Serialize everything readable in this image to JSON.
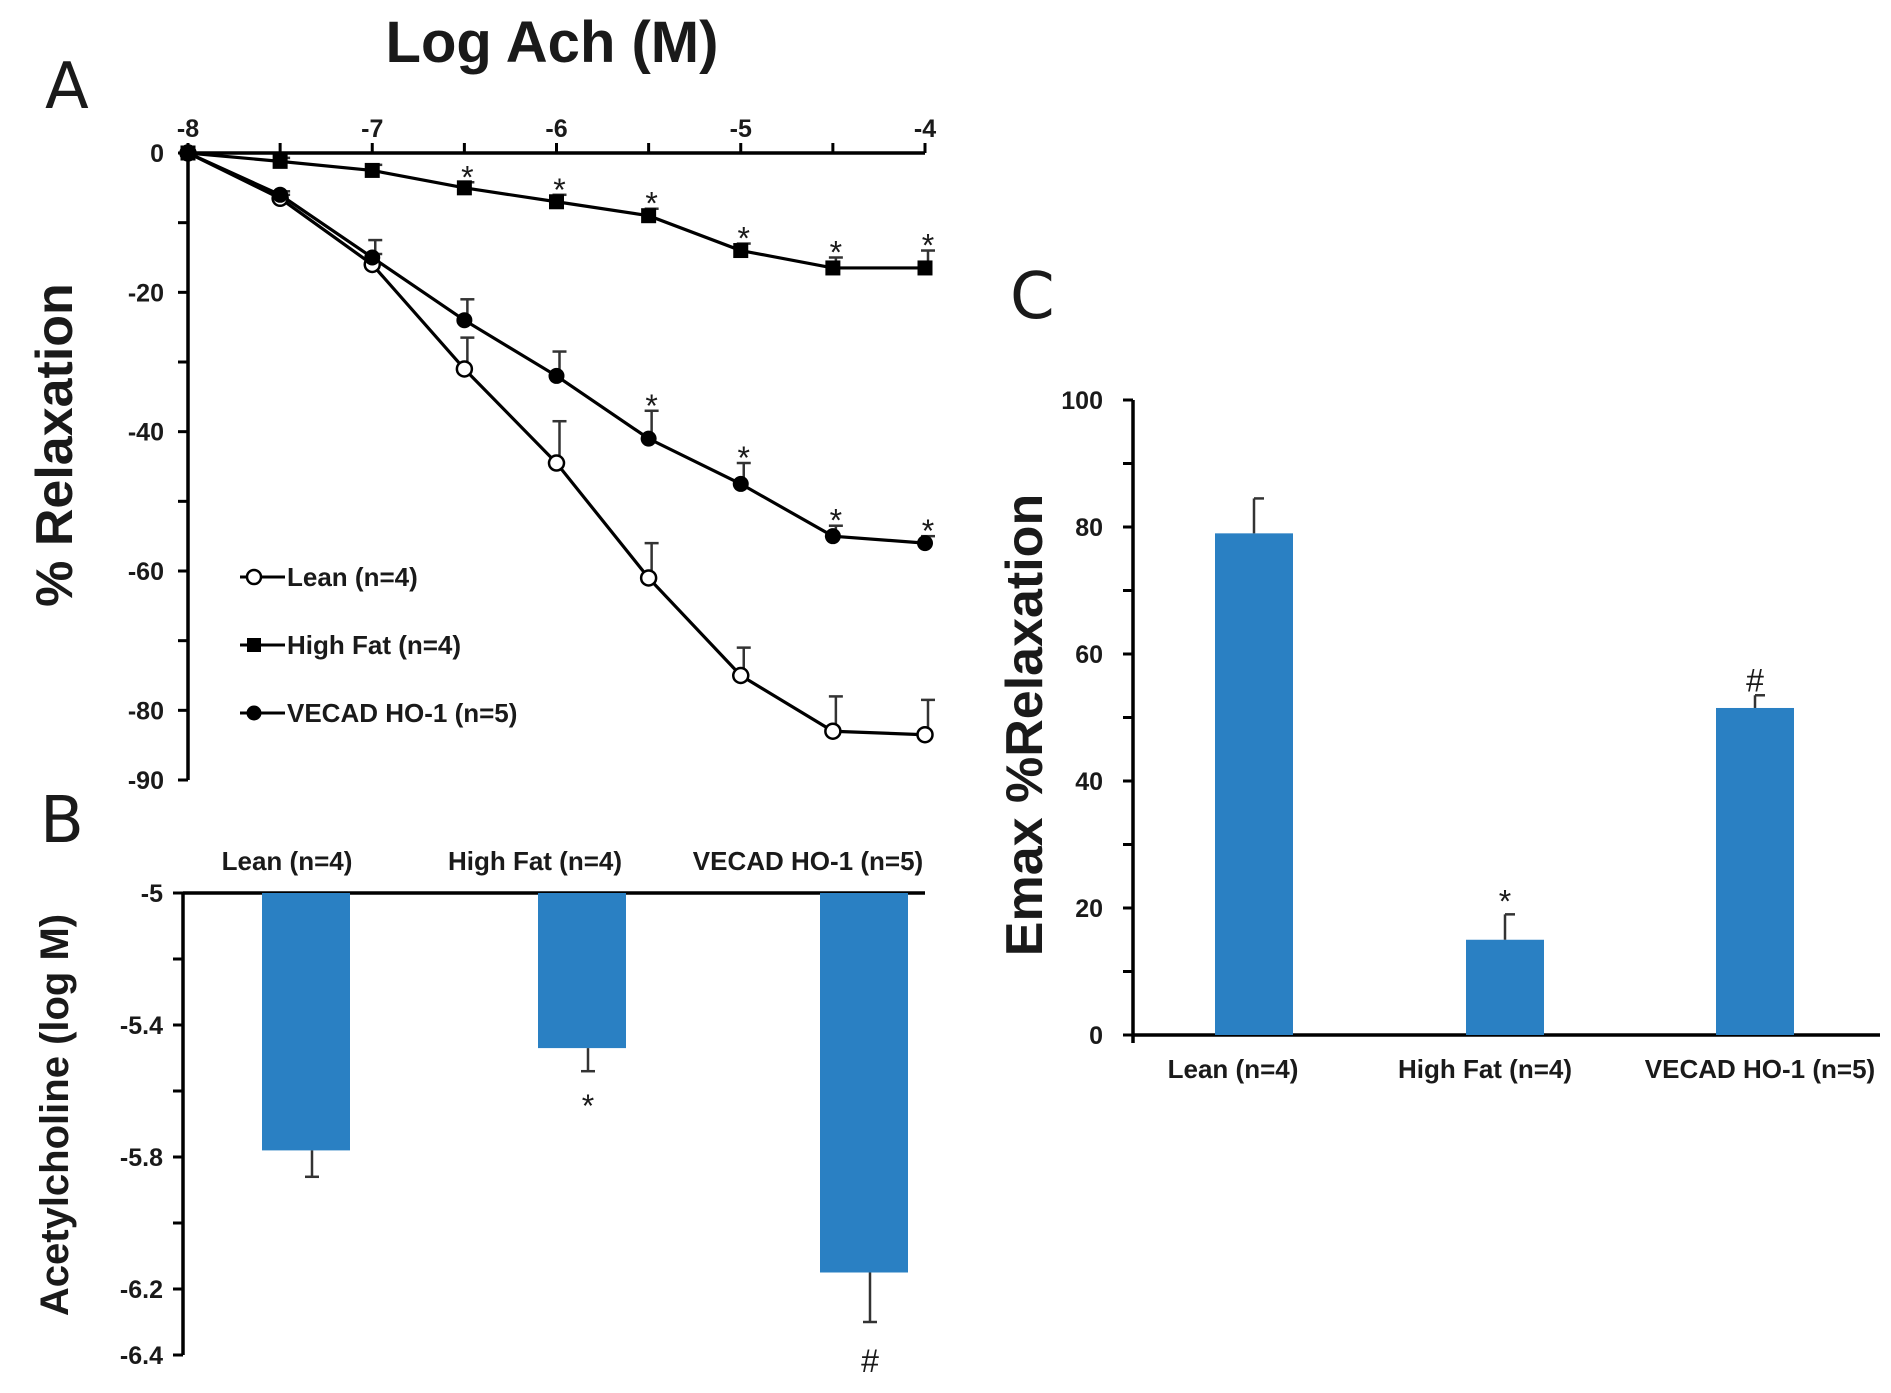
{
  "panel_labels": {
    "a": "A",
    "b": "B",
    "c": "C"
  },
  "colors": {
    "bar": "#2a80c3",
    "axis": "#000000"
  },
  "chart_data": [
    {
      "panel": "A",
      "type": "line",
      "title": "Log Ach (M)",
      "xlabel": "",
      "ylabel": "% Relaxation",
      "x_axis_position": "top",
      "xlim": [
        -8,
        -4
      ],
      "ylim": [
        -90,
        0
      ],
      "x_ticks": [
        "-8",
        "-7",
        "-6",
        "-5",
        "-4"
      ],
      "y_ticks": [
        {
          "value": 0,
          "label": "0"
        },
        {
          "value": -20,
          "label": "-20"
        },
        {
          "value": -40,
          "label": "-40"
        },
        {
          "value": -60,
          "label": "-60"
        },
        {
          "value": -80,
          "label": "-80"
        },
        {
          "value": -90,
          "label": "-90"
        }
      ],
      "x": [
        -8,
        -7.5,
        -7,
        -6.5,
        -6,
        -5.5,
        -5,
        -4.5,
        -4
      ],
      "legend_position": "bottom-left",
      "series": [
        {
          "name": "Lean (n=4)",
          "marker": "open-circle",
          "values": [
            0,
            -6.5,
            -16,
            -31,
            -44.5,
            -61,
            -75,
            -83,
            -83.5
          ],
          "errors": [
            0,
            0.5,
            1.5,
            4.5,
            6,
            5,
            4,
            5,
            5
          ],
          "significance": [
            "",
            "",
            "",
            "",
            "",
            "",
            "",
            "",
            ""
          ]
        },
        {
          "name": "High Fat (n=4)",
          "marker": "filled-square",
          "values": [
            0,
            -1.2,
            -2.5,
            -5,
            -7,
            -9,
            -14,
            -16.5,
            -16.5
          ],
          "errors": [
            0,
            0.5,
            0.8,
            0.8,
            1,
            1,
            1,
            1.5,
            2.5
          ],
          "significance": [
            "",
            "",
            "",
            "*",
            "*",
            "*",
            "*",
            "*",
            "*"
          ]
        },
        {
          "name": "VECAD HO-1 (n=5)",
          "marker": "filled-circle",
          "values": [
            0,
            -6,
            -15,
            -24,
            -32,
            -41,
            -47.5,
            -55,
            -56
          ],
          "errors": [
            0,
            0.5,
            2.5,
            3,
            3.5,
            4,
            3,
            1.5,
            1
          ],
          "significance": [
            "",
            "",
            "",
            "",
            "",
            "*",
            "*",
            "*",
            "*"
          ]
        }
      ]
    },
    {
      "panel": "B",
      "type": "bar",
      "title": "",
      "xlabel": "",
      "ylabel": "Acetylcholine (log M)",
      "ylim": [
        -6.4,
        -5
      ],
      "y_ticks": [
        {
          "value": -5,
          "label": "-5"
        },
        {
          "value": -5.4,
          "label": "-5.4"
        },
        {
          "value": -5.8,
          "label": "-5.8"
        },
        {
          "value": -6.2,
          "label": "-6.2"
        },
        {
          "value": -6.4,
          "label": "-6.4"
        }
      ],
      "categories": [
        "Lean (n=4)",
        "High Fat (n=4)",
        "VECAD HO-1 (n=5)"
      ],
      "values": [
        -5.78,
        -5.47,
        -6.15
      ],
      "errors": [
        0.08,
        0.07,
        0.15
      ],
      "significance": [
        "",
        "*",
        "#"
      ]
    },
    {
      "panel": "C",
      "type": "bar",
      "title": "",
      "xlabel": "",
      "ylabel": "Emax %Relaxation",
      "ylim": [
        0,
        100
      ],
      "y_ticks": [
        {
          "value": 0,
          "label": "0"
        },
        {
          "value": 20,
          "label": "20"
        },
        {
          "value": 40,
          "label": "40"
        },
        {
          "value": 60,
          "label": "60"
        },
        {
          "value": 80,
          "label": "80"
        },
        {
          "value": 100,
          "label": "100"
        }
      ],
      "categories": [
        "Lean (n=4)",
        "High Fat (n=4)",
        "VECAD HO-1 (n=5)"
      ],
      "values": [
        79,
        15,
        51.5
      ],
      "errors": [
        5.5,
        4,
        2
      ],
      "significance": [
        "",
        "*",
        "#"
      ]
    }
  ]
}
